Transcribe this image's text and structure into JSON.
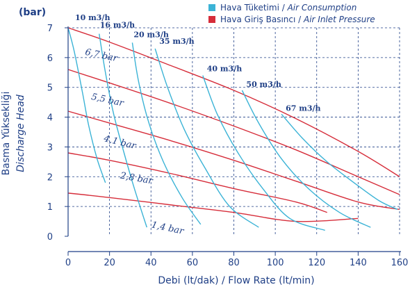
{
  "chart_data": {
    "type": "line",
    "legend": [
      {
        "text": "Hava Tüketimi / ",
        "italic": "Air Consumption",
        "color": "#3bb3d6"
      },
      {
        "text": "Hava Giriş Basıncı / ",
        "italic": "Air Inlet Pressure",
        "color": "#d62d3a"
      }
    ],
    "xlabel": "Debi (lt/dak) / Flow Rate (lt/min)",
    "ylabel": [
      "Basma Yüksekliği",
      "Discharge Head"
    ],
    "yunit": "(bar)",
    "xlim": [
      0,
      160
    ],
    "ylim": [
      0,
      7
    ],
    "xticks": [
      0,
      20,
      40,
      60,
      80,
      100,
      120,
      140,
      160
    ],
    "yticks": [
      0,
      1,
      2,
      3,
      4,
      5,
      6,
      7
    ],
    "grid": true,
    "colors": {
      "air": "#3bb3d6",
      "pressure": "#d62d3a",
      "axis": "#1f3f86",
      "grid": "#1f3f86"
    },
    "air_consumption": [
      {
        "label": "10 m3/h",
        "points": [
          [
            0,
            7.0
          ],
          [
            3,
            6.2
          ],
          [
            7,
            4.8
          ],
          [
            10,
            3.7
          ],
          [
            14,
            2.6
          ],
          [
            18,
            1.8
          ]
        ]
      },
      {
        "label": "16 m3/h",
        "points": [
          [
            15,
            6.8
          ],
          [
            18,
            5.5
          ],
          [
            22,
            4.1
          ],
          [
            27,
            2.8
          ],
          [
            32,
            1.6
          ],
          [
            38,
            0.3
          ]
        ]
      },
      {
        "label": "20 m3/h",
        "points": [
          [
            31,
            6.5
          ],
          [
            34,
            5.2
          ],
          [
            39,
            3.8
          ],
          [
            46,
            2.5
          ],
          [
            55,
            1.3
          ],
          [
            64,
            0.4
          ]
        ]
      },
      {
        "label": "35 m3/h",
        "points": [
          [
            42,
            6.3
          ],
          [
            48,
            5.0
          ],
          [
            56,
            3.6
          ],
          [
            66,
            2.3
          ],
          [
            78,
            1.0
          ],
          [
            92,
            0.3
          ]
        ]
      },
      {
        "label": "40 m3/h",
        "points": [
          [
            65,
            5.4
          ],
          [
            72,
            4.1
          ],
          [
            82,
            2.8
          ],
          [
            94,
            1.6
          ],
          [
            107,
            0.6
          ],
          [
            124,
            0.2
          ]
        ]
      },
      {
        "label": "50 m3/h",
        "points": [
          [
            84,
            4.9
          ],
          [
            92,
            3.8
          ],
          [
            103,
            2.6
          ],
          [
            116,
            1.6
          ],
          [
            131,
            0.8
          ],
          [
            146,
            0.3
          ]
        ]
      },
      {
        "label": "67 m3/h",
        "points": [
          [
            103,
            4.1
          ],
          [
            113,
            3.3
          ],
          [
            125,
            2.5
          ],
          [
            138,
            1.8
          ],
          [
            150,
            1.2
          ],
          [
            159,
            0.9
          ]
        ]
      }
    ],
    "air_inlet_pressure": [
      {
        "label": "6,7 bar",
        "points": [
          [
            0,
            7.0
          ],
          [
            20,
            6.52
          ],
          [
            50,
            5.72
          ],
          [
            80,
            4.9
          ],
          [
            110,
            3.95
          ],
          [
            140,
            2.85
          ],
          [
            160,
            2.0
          ]
        ]
      },
      {
        "label": "5,5 bar",
        "points": [
          [
            0,
            5.6
          ],
          [
            20,
            5.15
          ],
          [
            50,
            4.45
          ],
          [
            80,
            3.7
          ],
          [
            110,
            2.9
          ],
          [
            140,
            2.0
          ],
          [
            160,
            1.4
          ]
        ]
      },
      {
        "label": "4,1 bar",
        "points": [
          [
            0,
            4.2
          ],
          [
            20,
            3.8
          ],
          [
            50,
            3.2
          ],
          [
            80,
            2.55
          ],
          [
            110,
            1.85
          ],
          [
            140,
            1.15
          ],
          [
            160,
            0.9
          ]
        ]
      },
      {
        "label": "2,8 bar",
        "points": [
          [
            0,
            2.8
          ],
          [
            20,
            2.55
          ],
          [
            50,
            2.1
          ],
          [
            80,
            1.6
          ],
          [
            110,
            1.15
          ],
          [
            125,
            0.8
          ]
        ]
      },
      {
        "label": "1,4 bar",
        "points": [
          [
            0,
            1.45
          ],
          [
            20,
            1.3
          ],
          [
            50,
            1.05
          ],
          [
            80,
            0.8
          ],
          [
            110,
            0.5
          ],
          [
            140,
            0.6
          ]
        ]
      }
    ]
  }
}
